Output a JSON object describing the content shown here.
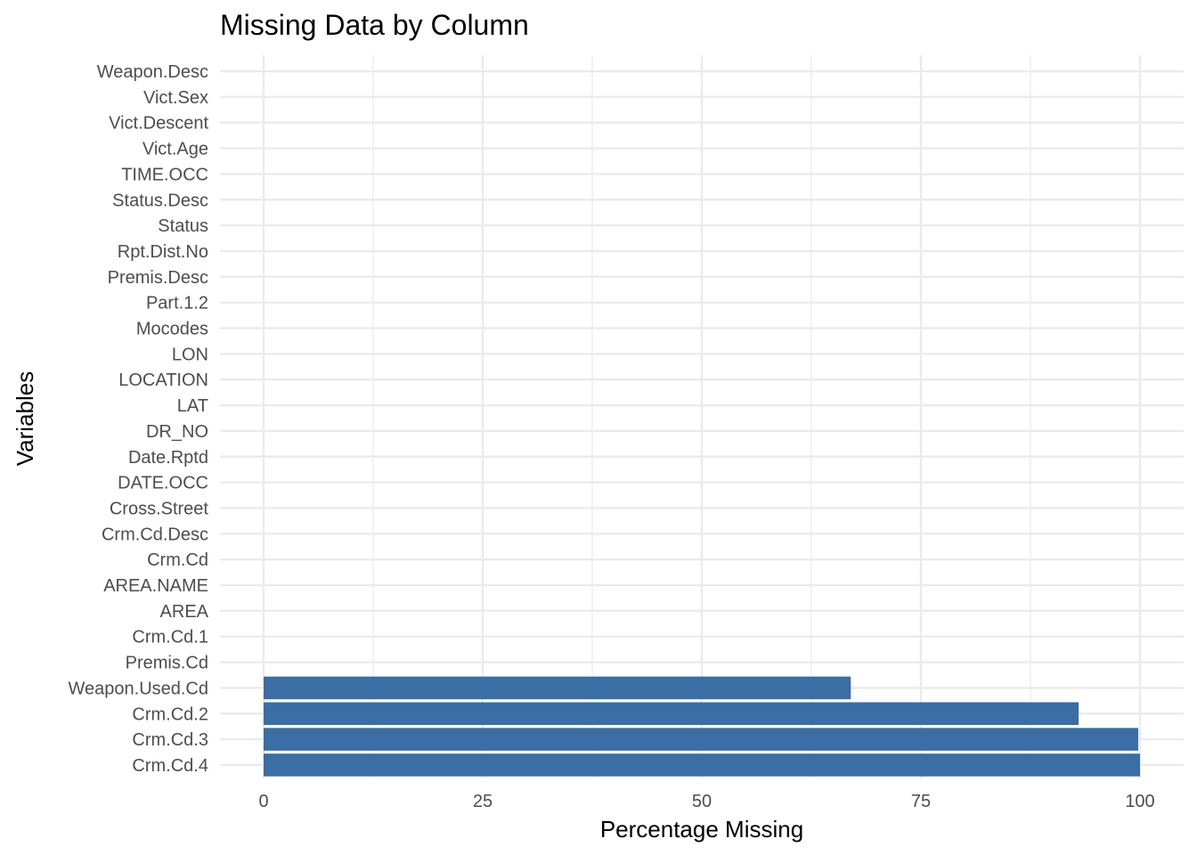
{
  "chart_data": {
    "type": "bar",
    "orientation": "horizontal",
    "title": "Missing Data by Column",
    "xlabel": "Percentage Missing",
    "ylabel": "Variables",
    "xlim": [
      0,
      100
    ],
    "x_ticks": [
      0,
      25,
      50,
      75,
      100
    ],
    "grid": true,
    "bar_color": "#3a6ea5",
    "categories": [
      "Weapon.Desc",
      "Vict.Sex",
      "Vict.Descent",
      "Vict.Age",
      "TIME.OCC",
      "Status.Desc",
      "Status",
      "Rpt.Dist.No",
      "Premis.Desc",
      "Part.1.2",
      "Mocodes",
      "LON",
      "LOCATION",
      "LAT",
      "DR_NO",
      "Date.Rptd",
      "DATE.OCC",
      "Cross.Street",
      "Crm.Cd.Desc",
      "Crm.Cd",
      "AREA.NAME",
      "AREA",
      "Crm.Cd.1",
      "Premis.Cd",
      "Weapon.Used.Cd",
      "Crm.Cd.2",
      "Crm.Cd.3",
      "Crm.Cd.4"
    ],
    "values": [
      0,
      0,
      0,
      0,
      0,
      0,
      0,
      0,
      0,
      0,
      0,
      0,
      0,
      0,
      0,
      0,
      0,
      0,
      0,
      0,
      0,
      0,
      0,
      0,
      67,
      93,
      99.8,
      100
    ]
  }
}
